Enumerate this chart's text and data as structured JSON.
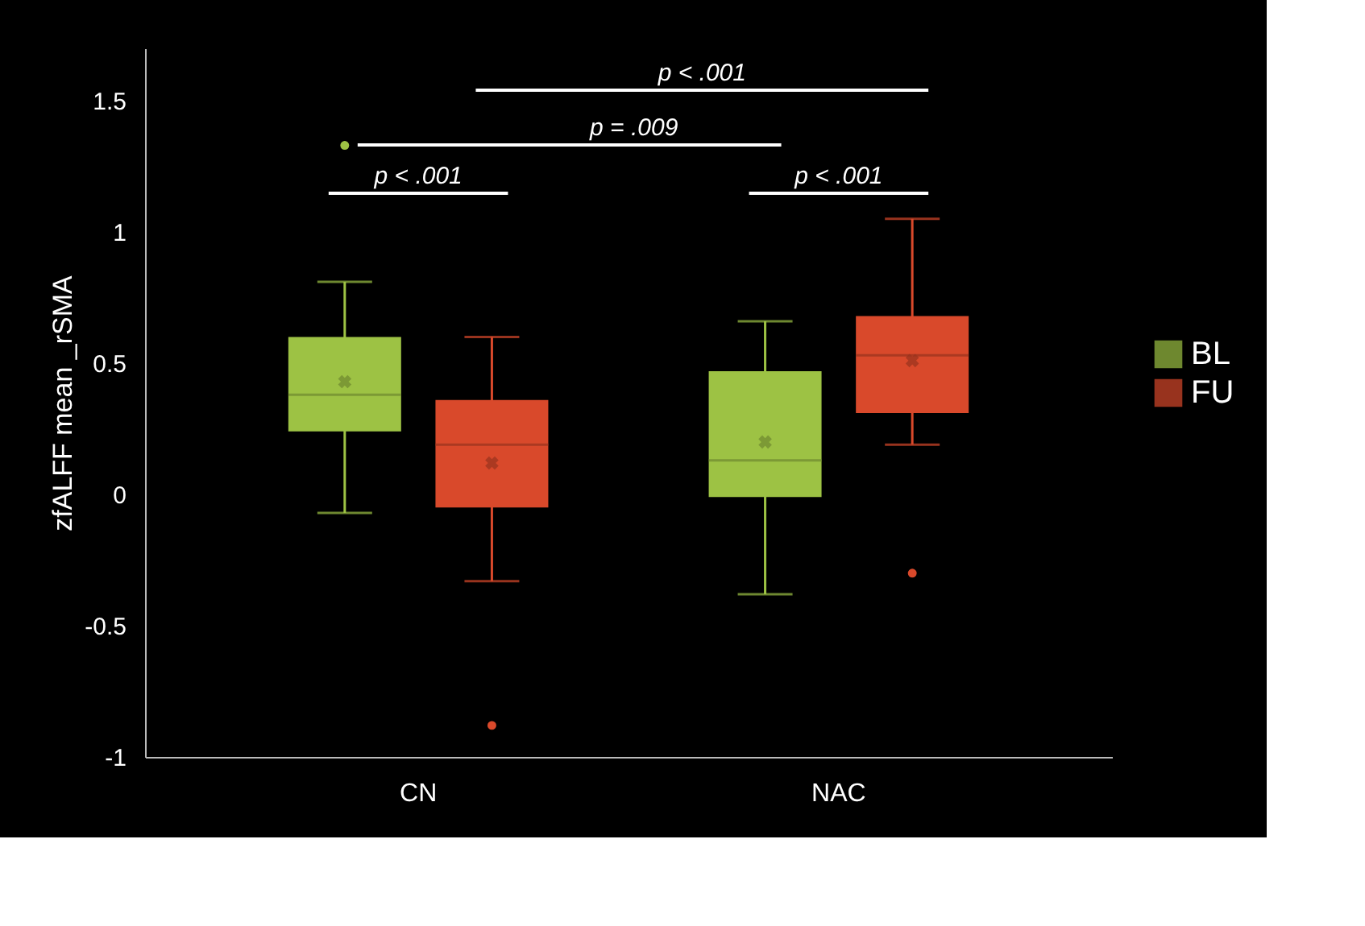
{
  "chart_data": {
    "type": "box",
    "ylabel": "zfALFF mean _rSMA",
    "categories": [
      "CN",
      "NAC"
    ],
    "series": [
      {
        "name": "BL",
        "color": "#9dc244",
        "boxes": [
          {
            "low": -0.07,
            "q1": 0.24,
            "median": 0.38,
            "q3": 0.6,
            "high": 0.81,
            "mean": 0.43,
            "outliers": [
              1.33
            ]
          },
          {
            "low": -0.38,
            "q1": -0.01,
            "median": 0.13,
            "q3": 0.47,
            "high": 0.66,
            "mean": 0.2
          }
        ]
      },
      {
        "name": "FU",
        "color": "#d9492b",
        "boxes": [
          {
            "low": -0.33,
            "q1": -0.05,
            "median": 0.19,
            "q3": 0.36,
            "high": 0.6,
            "mean": 0.12,
            "outliers": [
              -0.88
            ]
          },
          {
            "low": 0.19,
            "q1": 0.31,
            "median": 0.53,
            "q3": 0.68,
            "high": 1.05,
            "mean": 0.51,
            "outliers": [
              -0.3
            ]
          }
        ]
      }
    ],
    "ylim": [
      -1,
      1.7
    ],
    "yticks": [
      -1,
      -0.5,
      0,
      0.5,
      1,
      1.5
    ],
    "legend": "right",
    "annotations": [
      "p < .001",
      "p = .009",
      "p < .001",
      "p < .001"
    ]
  }
}
